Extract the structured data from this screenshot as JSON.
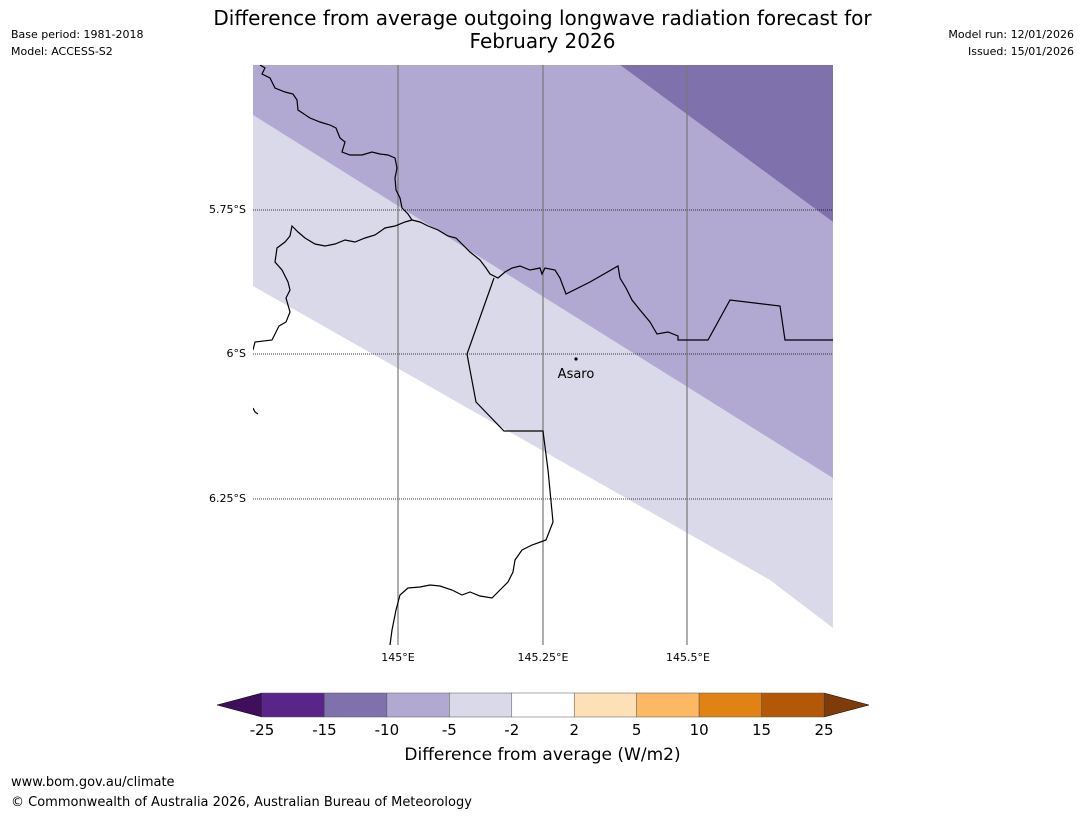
{
  "title": {
    "line1": "Difference from average outgoing longwave radiation forecast for",
    "line2": "February 2026"
  },
  "meta_left": {
    "base_period": "Base period: 1981-2018",
    "model": "Model: ACCESS-S2"
  },
  "meta_right": {
    "model_run": "Model run: 12/01/2026",
    "issued": "Issued: 15/01/2026"
  },
  "map": {
    "lat_labels": [
      "5.75°S",
      "6°S",
      "6.25°S"
    ],
    "lon_labels": [
      "145°E",
      "145.25°E",
      "145.5°E"
    ],
    "place": "Asaro"
  },
  "legend": {
    "title": "Difference from average (W/m2)",
    "ticks": [
      "-25",
      "-15",
      "-10",
      "-5",
      "-2",
      "2",
      "5",
      "10",
      "15",
      "25"
    ],
    "colors": {
      "below_min": "#3f0f5c",
      "bins": [
        "#5a2588",
        "#7f71ab",
        "#b1a9d1",
        "#d9d9ea",
        "#ffffff",
        "#fee0b6",
        "#fdb863",
        "#e08214",
        "#b35806"
      ],
      "above_max": "#7f3b08"
    }
  },
  "footer": {
    "url": "www.bom.gov.au/climate",
    "copyright": "© Commonwealth of Australia 2026, Australian Bureau of Meteorology"
  }
}
